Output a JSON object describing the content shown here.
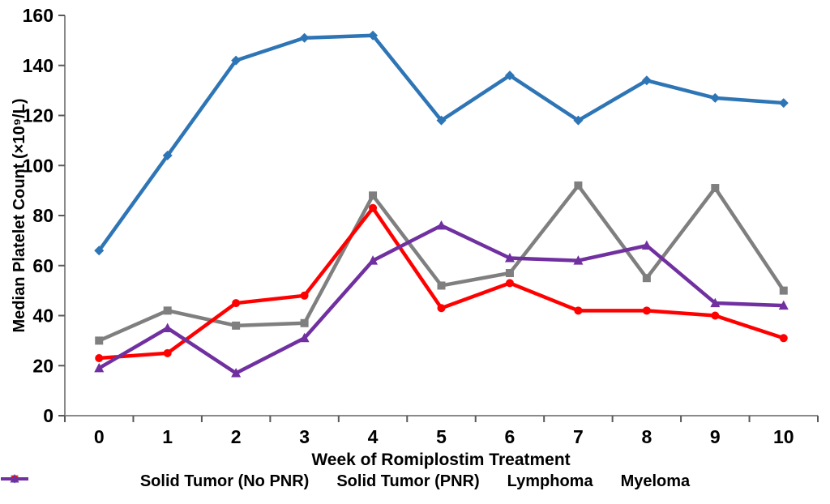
{
  "figure": {
    "panel_label_fragment": "("
  },
  "chart_data": {
    "type": "line",
    "title": "",
    "xlabel": "Week of Romiplostim Treatment",
    "ylabel": "Median Platelet Count (×10⁹/L)",
    "categories": [
      0,
      1,
      2,
      3,
      4,
      5,
      6,
      7,
      8,
      9,
      10
    ],
    "ylim": [
      0,
      160
    ],
    "ytick_step": 20,
    "grid": false,
    "legend_position": "bottom",
    "axis_color": "#8a8a8a",
    "series": [
      {
        "name": "Solid Tumor (No PNR)",
        "color": "#2E75B6",
        "marker": "diamond",
        "values": [
          66,
          104,
          142,
          151,
          152,
          118,
          136,
          118,
          134,
          127,
          125
        ]
      },
      {
        "name": "Solid Tumor (PNR)",
        "color": "#7F7F7F",
        "marker": "square",
        "values": [
          30,
          42,
          36,
          37,
          88,
          52,
          57,
          92,
          55,
          91,
          50
        ]
      },
      {
        "name": "Lymphoma",
        "color": "#FF0000",
        "marker": "circle",
        "values": [
          23,
          25,
          45,
          48,
          83,
          43,
          53,
          42,
          42,
          40,
          31
        ]
      },
      {
        "name": "Myeloma",
        "color": "#7030A0",
        "marker": "triangle",
        "values": [
          19,
          35,
          17,
          31,
          62,
          76,
          63,
          62,
          68,
          45,
          44
        ]
      }
    ]
  }
}
